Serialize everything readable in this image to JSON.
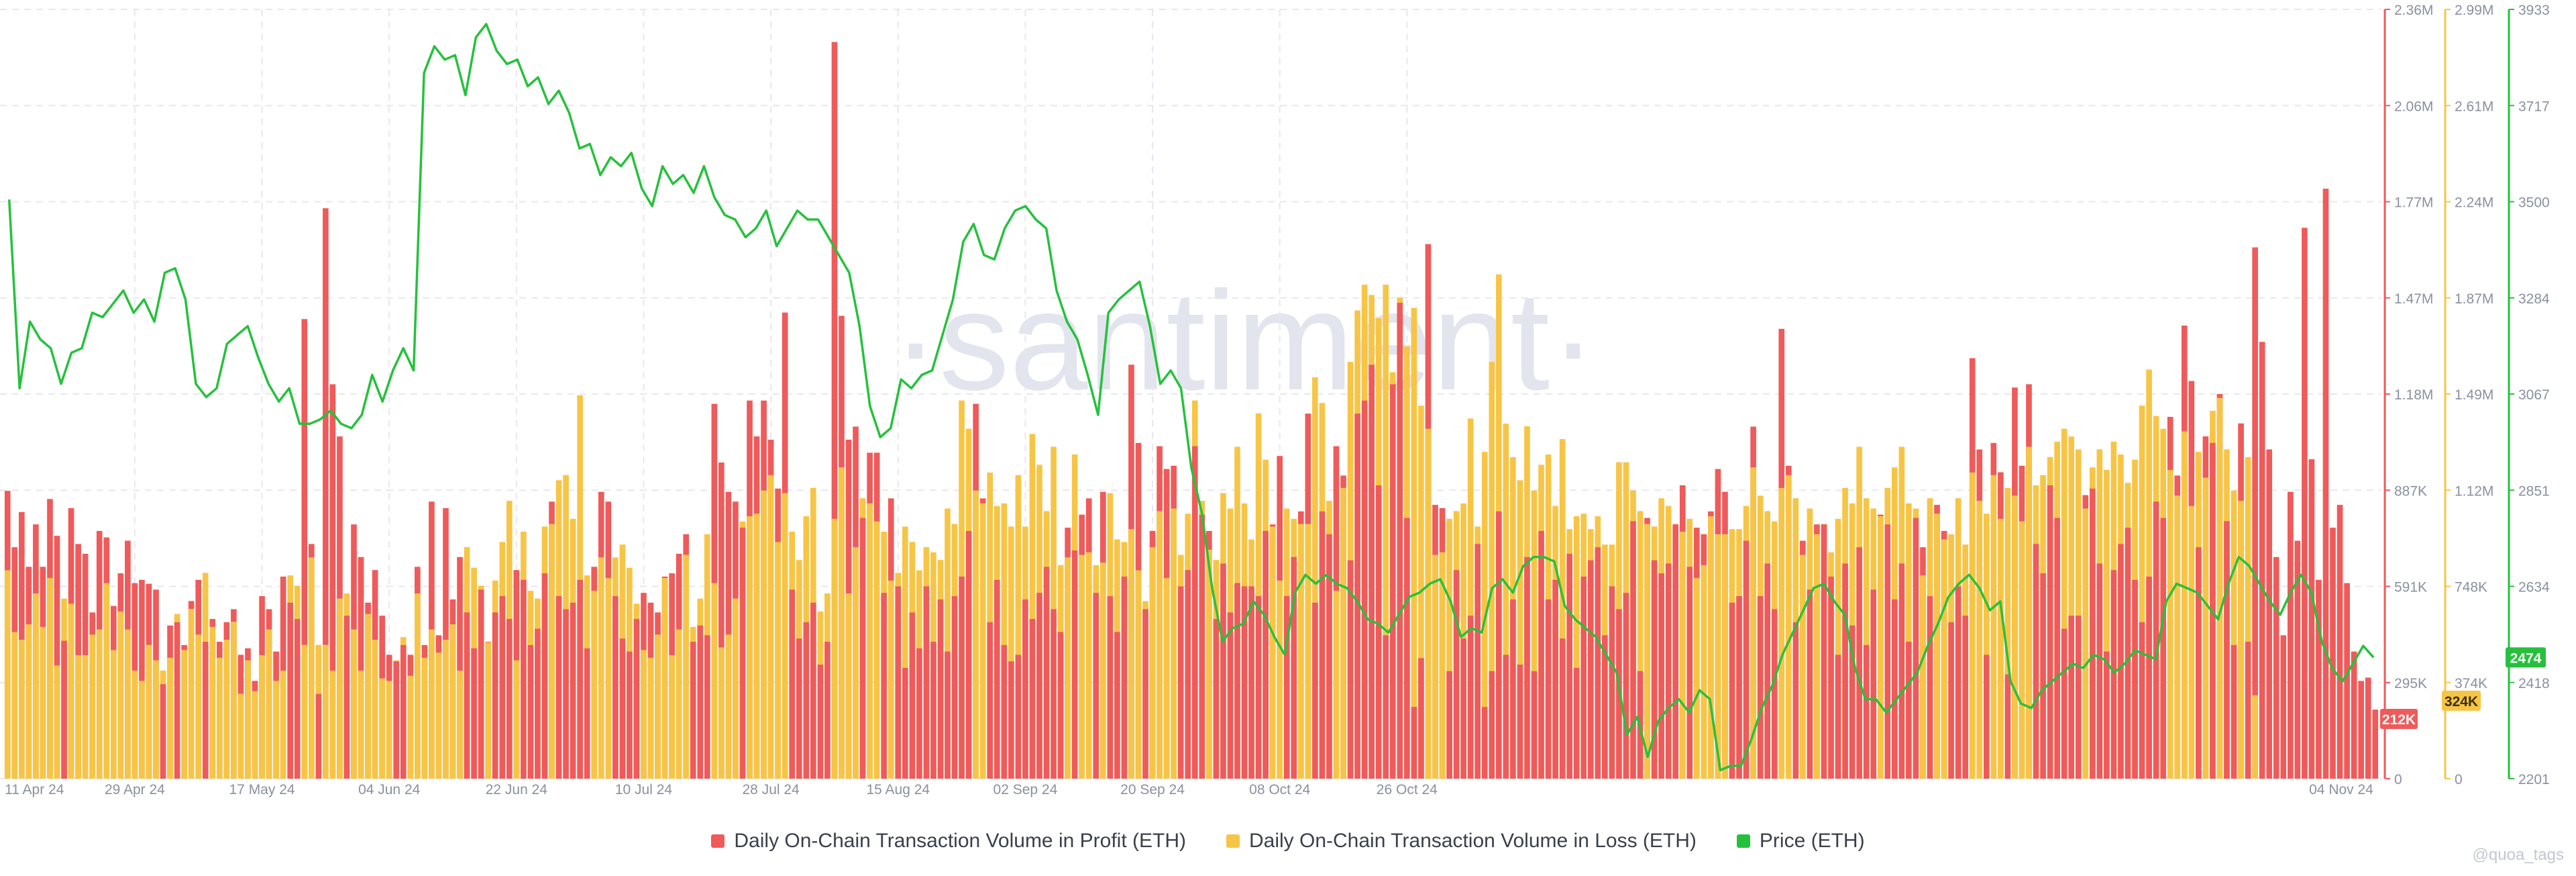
{
  "colors": {
    "profit": "#ef5a5a",
    "loss": "#f7c546",
    "price": "#26c13c",
    "grid": "#e6e8ee",
    "axis_text": "#8a90a0",
    "watermark": "#d9dde8"
  },
  "watermark": "·santiment·",
  "credit": "@quoa_tags",
  "legend": [
    {
      "label": "Daily On-Chain Transaction Volume in Profit (ETH)",
      "color": "#ef5a5a"
    },
    {
      "label": "Daily On-Chain Transaction Volume in Loss (ETH)",
      "color": "#f7c546"
    },
    {
      "label": "Price (ETH)",
      "color": "#26c13c"
    }
  ],
  "chart_data": {
    "type": "bar",
    "title": "",
    "xlabel": "",
    "ylabel": "",
    "x_ticks": [
      "11 Apr 24",
      "29 Apr 24",
      "17 May 24",
      "04 Jun 24",
      "22 Jun 24",
      "10 Jul 24",
      "28 Jul 24",
      "15 Aug 24",
      "02 Sep 24",
      "20 Sep 24",
      "08 Oct 24",
      "26 Oct 24",
      "04 Nov 24"
    ],
    "x_range": [
      "2024-04-09",
      "2024-11-04"
    ],
    "grid": true,
    "legend_position": "bottom",
    "axes": {
      "profit": {
        "ylim": [
          0,
          2360000
        ],
        "ticks": [
          "0",
          "295K",
          "591K",
          "887K",
          "1.18M",
          "1.47M",
          "1.77M",
          "2.06M",
          "2.36M"
        ]
      },
      "loss": {
        "ylim": [
          0,
          2990000
        ],
        "ticks": [
          "0",
          "374K",
          "748K",
          "1.12M",
          "1.49M",
          "1.87M",
          "2.24M",
          "2.61M",
          "2.99M"
        ]
      },
      "price": {
        "ylim": [
          2201,
          3933
        ],
        "ticks": [
          "2201",
          "2418",
          "2634",
          "2851",
          "3067",
          "3284",
          "3500",
          "3717",
          "3933"
        ]
      }
    },
    "last_values": {
      "profit": "212K",
      "loss": "324K",
      "price": "2474"
    },
    "series": [
      {
        "name": "Daily On-Chain Transaction Volume in Profit (ETH)",
        "axis": "profit",
        "kind": "bar",
        "values": [
          883000,
          710000,
          818000,
          650000,
          780000,
          650000,
          858000,
          745000,
          423000,
          830000,
          720000,
          690000,
          510000,
          760000,
          740000,
          530000,
          630000,
          730000,
          600000,
          610000,
          598000,
          580000,
          290000,
          470000,
          480000,
          410000,
          545000,
          610000,
          420000,
          490000,
          420000,
          480000,
          520000,
          380000,
          400000,
          300000,
          560000,
          520000,
          390000,
          620000,
          540000,
          490000,
          1410000,
          720000,
          260000,
          1750000,
          1210000,
          1050000,
          500000,
          780000,
          680000,
          540000,
          640000,
          500000,
          380000,
          360000,
          410000,
          380000,
          650000,
          410000,
          850000,
          440000,
          830000,
          550000,
          680000,
          510000,
          400000,
          580000,
          420000,
          510000,
          560000,
          490000,
          640000,
          610000,
          410000,
          460000,
          630000,
          850000,
          560000,
          520000,
          540000,
          610000,
          400000,
          650000,
          880000,
          850000,
          560000,
          430000,
          390000,
          490000,
          570000,
          540000,
          510000,
          620000,
          630000,
          690000,
          750000,
          420000,
          470000,
          440000,
          1150000,
          970000,
          880000,
          850000,
          770000,
          1160000,
          1050000,
          1160000,
          1040000,
          890000,
          1430000,
          580000,
          430000,
          480000,
          540000,
          350000,
          420000,
          2260000,
          1420000,
          1040000,
          1080000,
          800000,
          1000000,
          1000000,
          570000,
          860000,
          590000,
          340000,
          510000,
          400000,
          590000,
          420000,
          550000,
          390000,
          560000,
          620000,
          760000,
          1150000,
          860000,
          480000,
          610000,
          410000,
          360000,
          380000,
          550000,
          490000,
          570000,
          650000,
          520000,
          450000,
          770000,
          700000,
          810000,
          860000,
          570000,
          880000,
          560000,
          450000,
          620000,
          1270000,
          1030000,
          520000,
          760000,
          1020000,
          950000,
          960000,
          590000,
          640000,
          1020000,
          810000,
          760000,
          490000,
          660000,
          510000,
          600000,
          590000,
          590000,
          560000,
          760000,
          780000,
          990000,
          560000,
          680000,
          820000,
          1120000,
          540000,
          820000,
          750000,
          1020000,
          930000,
          670000,
          1120000,
          1160000,
          1270000,
          900000,
          440000,
          1210000,
          1460000,
          800000,
          220000,
          370000,
          1640000,
          840000,
          830000,
          330000,
          640000,
          430000,
          500000,
          720000,
          220000,
          330000,
          820000,
          380000,
          550000,
          350000,
          680000,
          330000,
          760000,
          550000,
          610000,
          430000,
          690000,
          340000,
          620000,
          670000,
          710000,
          440000,
          590000,
          520000,
          570000,
          790000,
          330000,
          800000,
          670000,
          630000,
          660000,
          780000,
          900000,
          650000,
          770000,
          750000,
          820000,
          950000,
          880000,
          540000,
          560000,
          730000,
          1080000,
          560000,
          660000,
          520000,
          1380000,
          960000,
          480000,
          730000,
          580000,
          780000,
          780000,
          620000,
          380000,
          660000,
          470000,
          710000,
          410000,
          580000,
          810000,
          780000,
          550000,
          660000,
          420000,
          800000,
          710000,
          560000,
          840000,
          760000,
          480000,
          590000,
          500000,
          1290000,
          1010000,
          380000,
          1030000,
          940000,
          320000,
          1200000,
          960000,
          1210000,
          720000,
          630000,
          900000,
          800000,
          460000,
          500000,
          500000,
          870000,
          890000,
          660000,
          390000,
          640000,
          720000,
          770000,
          610000,
          480000,
          620000,
          850000,
          800000,
          1110000,
          930000,
          1390000,
          1220000,
          710000,
          1050000,
          1030000,
          1180000,
          790000,
          410000,
          1090000,
          420000,
          1630000,
          1340000,
          1010000,
          680000,
          440000,
          880000,
          730000,
          1690000,
          980000,
          610000,
          1810000,
          770000,
          840000,
          600000,
          390000,
          300000,
          310000,
          212000
        ]
      },
      {
        "name": "Daily On-Chain Transaction Volume in Loss (ETH)",
        "axis": "loss",
        "kind": "bar",
        "values": [
          810000,
          570000,
          540000,
          600000,
          720000,
          590000,
          780000,
          440000,
          700000,
          680000,
          480000,
          480000,
          560000,
          580000,
          760000,
          500000,
          650000,
          580000,
          420000,
          380000,
          520000,
          460000,
          420000,
          470000,
          640000,
          500000,
          660000,
          560000,
          800000,
          590000,
          470000,
          540000,
          610000,
          330000,
          460000,
          340000,
          480000,
          580000,
          380000,
          420000,
          790000,
          750000,
          520000,
          860000,
          520000,
          520000,
          420000,
          700000,
          720000,
          580000,
          420000,
          640000,
          540000,
          390000,
          380000,
          460000,
          550000,
          400000,
          720000,
          470000,
          580000,
          490000,
          540000,
          600000,
          420000,
          900000,
          820000,
          750000,
          530000,
          770000,
          920000,
          1080000,
          460000,
          960000,
          730000,
          700000,
          980000,
          990000,
          1160000,
          1180000,
          1010000,
          1490000,
          790000,
          730000,
          860000,
          780000,
          860000,
          910000,
          820000,
          680000,
          500000,
          470000,
          560000,
          780000,
          480000,
          580000,
          870000,
          590000,
          700000,
          950000,
          760000,
          510000,
          560000,
          700000,
          1000000,
          1020000,
          1030000,
          1120000,
          1180000,
          920000,
          1110000,
          960000,
          850000,
          1020000,
          1130000,
          650000,
          720000,
          1010000,
          1210000,
          720000,
          900000,
          1090000,
          1070000,
          1000000,
          960000,
          770000,
          800000,
          980000,
          920000,
          810000,
          900000,
          880000,
          850000,
          1050000,
          990000,
          1470000,
          1360000,
          1120000,
          1070000,
          1190000,
          1060000,
          1070000,
          980000,
          1180000,
          980000,
          1340000,
          1220000,
          1040000,
          1290000,
          830000,
          860000,
          1260000,
          870000,
          880000,
          830000,
          840000,
          1110000,
          930000,
          920000,
          970000,
          810000,
          690000,
          900000,
          1040000,
          780000,
          1050000,
          870000,
          1030000,
          1470000,
          1080000,
          890000,
          850000,
          1110000,
          1050000,
          1290000,
          1070000,
          930000,
          1420000,
          1240000,
          980000,
          770000,
          1050000,
          1010000,
          990000,
          990000,
          1560000,
          1460000,
          1080000,
          730000,
          1130000,
          1620000,
          1820000,
          1920000,
          1880000,
          1790000,
          1920000,
          1580000,
          1870000,
          1680000,
          1830000,
          1450000,
          1360000,
          870000,
          880000,
          1010000,
          1040000,
          1070000,
          1400000,
          980000,
          1270000,
          1620000,
          1960000,
          1380000,
          1250000,
          1160000,
          1370000,
          1120000,
          1220000,
          1260000,
          1060000,
          1320000,
          970000,
          1020000,
          1030000,
          970000,
          1020000,
          910000,
          910000,
          1230000,
          1230000,
          1120000,
          1040000,
          990000,
          980000,
          1090000,
          1060000,
          990000,
          960000,
          1010000,
          780000,
          830000,
          1020000,
          950000,
          950000,
          970000,
          970000,
          1060000,
          1210000,
          1100000,
          1040000,
          1000000,
          1130000,
          1180000,
          1090000,
          870000,
          1050000,
          950000,
          990000,
          880000,
          1010000,
          1130000,
          1070000,
          1290000,
          1090000,
          1050000,
          1020000,
          1130000,
          1210000,
          1290000,
          1070000,
          1050000,
          790000,
          1090000,
          1030000,
          930000,
          950000,
          1090000,
          910000,
          1190000,
          1080000,
          1030000,
          1180000,
          1010000,
          1130000,
          1100000,
          1000000,
          1290000,
          1140000,
          1180000,
          1250000,
          1310000,
          1360000,
          1330000,
          1280000,
          1050000,
          1210000,
          1280000,
          1200000,
          1310000,
          1260000,
          1150000,
          1240000,
          1450000,
          1590000,
          1410000,
          1360000,
          1200000,
          1100000,
          1350000,
          1060000,
          1270000,
          1170000,
          1430000,
          1480000,
          1280000,
          1120000,
          1080000,
          1250000,
          324000
        ]
      },
      {
        "name": "Price (ETH)",
        "axis": "price",
        "kind": "line",
        "values": [
          3505,
          3080,
          3230,
          3190,
          3170,
          3090,
          3160,
          3170,
          3250,
          3240,
          3270,
          3300,
          3250,
          3280,
          3230,
          3340,
          3350,
          3280,
          3090,
          3060,
          3080,
          3180,
          3200,
          3220,
          3150,
          3090,
          3050,
          3080,
          3000,
          3000,
          3010,
          3030,
          3000,
          2990,
          3020,
          3110,
          3050,
          3120,
          3170,
          3120,
          3790,
          3850,
          3820,
          3830,
          3740,
          3870,
          3900,
          3840,
          3810,
          3820,
          3760,
          3780,
          3720,
          3750,
          3700,
          3620,
          3630,
          3560,
          3600,
          3580,
          3610,
          3530,
          3490,
          3580,
          3540,
          3560,
          3520,
          3580,
          3510,
          3470,
          3460,
          3420,
          3440,
          3480,
          3400,
          3440,
          3480,
          3460,
          3460,
          3420,
          3380,
          3340,
          3220,
          3040,
          2970,
          2990,
          3100,
          3080,
          3110,
          3120,
          3200,
          3280,
          3410,
          3450,
          3380,
          3370,
          3440,
          3480,
          3490,
          3460,
          3440,
          3300,
          3230,
          3190,
          3110,
          3020,
          3250,
          3280,
          3300,
          3320,
          3220,
          3090,
          3120,
          3080,
          2900,
          2800,
          2630,
          2510,
          2540,
          2550,
          2600,
          2570,
          2520,
          2480,
          2620,
          2660,
          2640,
          2660,
          2640,
          2630,
          2600,
          2560,
          2550,
          2530,
          2570,
          2610,
          2620,
          2640,
          2650,
          2600,
          2520,
          2540,
          2530,
          2630,
          2650,
          2620,
          2680,
          2700,
          2700,
          2690,
          2590,
          2560,
          2540,
          2520,
          2480,
          2440,
          2300,
          2340,
          2250,
          2330,
          2360,
          2380,
          2350,
          2400,
          2380,
          2220,
          2230,
          2230,
          2290,
          2360,
          2410,
          2480,
          2530,
          2580,
          2630,
          2640,
          2600,
          2570,
          2450,
          2380,
          2380,
          2350,
          2380,
          2410,
          2440,
          2500,
          2550,
          2610,
          2640,
          2660,
          2630,
          2580,
          2600,
          2420,
          2370,
          2360,
          2400,
          2420,
          2440,
          2460,
          2450,
          2480,
          2470,
          2440,
          2460,
          2490,
          2480,
          2470,
          2600,
          2640,
          2630,
          2620,
          2590,
          2560,
          2640,
          2700,
          2680,
          2640,
          2600,
          2570,
          2620,
          2660,
          2620,
          2510,
          2450,
          2420,
          2460,
          2500,
          2474
        ]
      }
    ]
  }
}
